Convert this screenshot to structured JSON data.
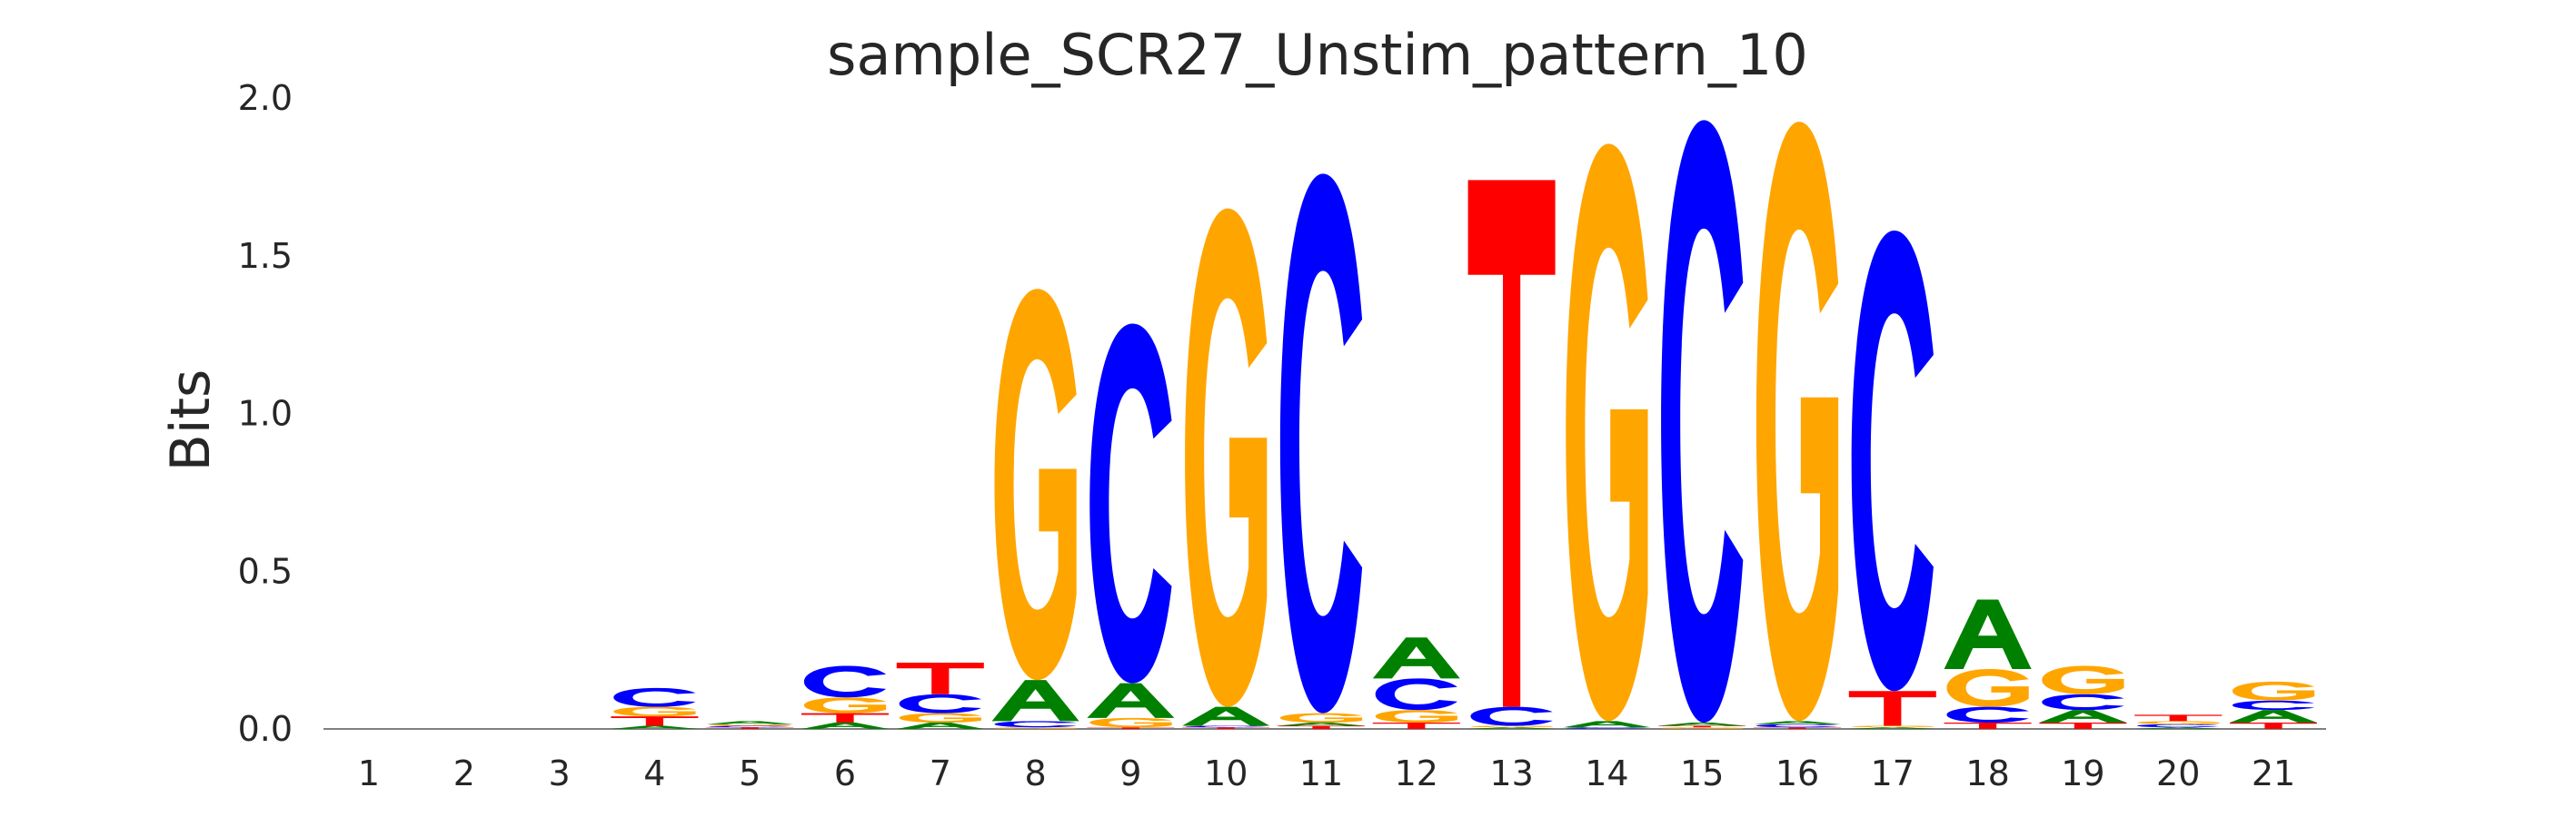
{
  "chart_data": {
    "type": "sequence_logo",
    "title": "sample_SCR27_Unstim_pattern_10",
    "ylabel": "Bits",
    "xlabel": "",
    "ylim": [
      0,
      2.0
    ],
    "yticks": [
      "0.0",
      "0.5",
      "1.0",
      "1.5",
      "2.0"
    ],
    "grid": false,
    "colors": {
      "A": "#008000",
      "C": "#0000ff",
      "G": "#ffa500",
      "T": "#ff0000"
    },
    "positions": [
      {
        "pos": "1",
        "stack": []
      },
      {
        "pos": "2",
        "stack": []
      },
      {
        "pos": "3",
        "stack": []
      },
      {
        "pos": "4",
        "stack": [
          [
            "A",
            0.01
          ],
          [
            "T",
            0.03
          ],
          [
            "G",
            0.03
          ],
          [
            "C",
            0.06
          ]
        ]
      },
      {
        "pos": "5",
        "stack": [
          [
            "T",
            0.005
          ],
          [
            "C",
            0.005
          ],
          [
            "G",
            0.005
          ],
          [
            "A",
            0.01
          ]
        ]
      },
      {
        "pos": "6",
        "stack": [
          [
            "A",
            0.02
          ],
          [
            "T",
            0.03
          ],
          [
            "G",
            0.05
          ],
          [
            "C",
            0.1
          ]
        ]
      },
      {
        "pos": "7",
        "stack": [
          [
            "A",
            0.02
          ],
          [
            "G",
            0.03
          ],
          [
            "C",
            0.06
          ],
          [
            "T",
            0.1
          ]
        ]
      },
      {
        "pos": "8",
        "stack": [
          [
            "G",
            0.005
          ],
          [
            "C",
            0.02
          ],
          [
            "A",
            0.13
          ],
          [
            "G",
            1.24
          ]
        ]
      },
      {
        "pos": "9",
        "stack": [
          [
            "T",
            0.005
          ],
          [
            "G",
            0.03
          ],
          [
            "A",
            0.11
          ],
          [
            "C",
            1.14
          ]
        ]
      },
      {
        "pos": "10",
        "stack": [
          [
            "T",
            0.005
          ],
          [
            "C",
            0.005
          ],
          [
            "A",
            0.06
          ],
          [
            "G",
            1.58
          ]
        ]
      },
      {
        "pos": "11",
        "stack": [
          [
            "T",
            0.01
          ],
          [
            "A",
            0.01
          ],
          [
            "G",
            0.03
          ],
          [
            "C",
            1.71
          ]
        ]
      },
      {
        "pos": "12",
        "stack": [
          [
            "T",
            0.02
          ],
          [
            "G",
            0.04
          ],
          [
            "C",
            0.1
          ],
          [
            "A",
            0.13
          ]
        ]
      },
      {
        "pos": "13",
        "stack": [
          [
            "A",
            0.005
          ],
          [
            "G",
            0.005
          ],
          [
            "C",
            0.06
          ],
          [
            "T",
            1.67
          ]
        ]
      },
      {
        "pos": "14",
        "stack": [
          [
            "C",
            0.005
          ],
          [
            "A",
            0.02
          ],
          [
            "G",
            1.83
          ]
        ]
      },
      {
        "pos": "15",
        "stack": [
          [
            "G",
            0.005
          ],
          [
            "T",
            0.005
          ],
          [
            "A",
            0.01
          ],
          [
            "C",
            1.91
          ]
        ]
      },
      {
        "pos": "16",
        "stack": [
          [
            "T",
            0.005
          ],
          [
            "C",
            0.01
          ],
          [
            "A",
            0.01
          ],
          [
            "G",
            1.9
          ]
        ]
      },
      {
        "pos": "17",
        "stack": [
          [
            "A",
            0.005
          ],
          [
            "G",
            0.005
          ],
          [
            "T",
            0.11
          ],
          [
            "C",
            1.46
          ]
        ]
      },
      {
        "pos": "18",
        "stack": [
          [
            "T",
            0.02
          ],
          [
            "C",
            0.05
          ],
          [
            "G",
            0.12
          ],
          [
            "A",
            0.22
          ]
        ]
      },
      {
        "pos": "19",
        "stack": [
          [
            "T",
            0.02
          ],
          [
            "A",
            0.04
          ],
          [
            "C",
            0.05
          ],
          [
            "G",
            0.09
          ]
        ]
      },
      {
        "pos": "20",
        "stack": [
          [
            "A",
            0.005
          ],
          [
            "C",
            0.01
          ],
          [
            "G",
            0.01
          ],
          [
            "T",
            0.02
          ]
        ]
      },
      {
        "pos": "21",
        "stack": [
          [
            "T",
            0.02
          ],
          [
            "A",
            0.04
          ],
          [
            "C",
            0.03
          ],
          [
            "G",
            0.06
          ]
        ]
      }
    ]
  }
}
